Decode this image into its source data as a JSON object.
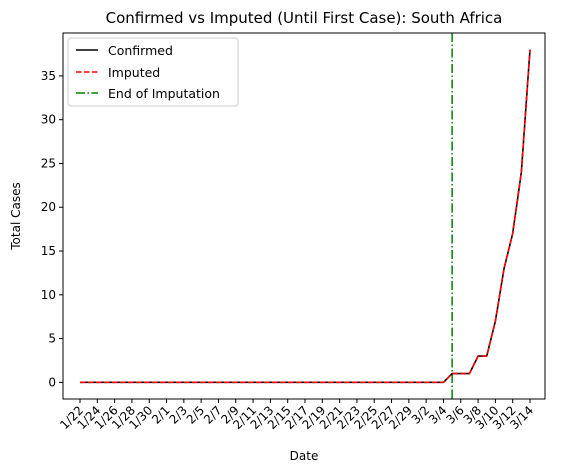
{
  "chart_data": {
    "type": "line",
    "title": "Confirmed vs Imputed (Until First Case): South Africa",
    "xlabel": "Date",
    "ylabel": "Total Cases",
    "x": [
      "1/22",
      "1/23",
      "1/24",
      "1/25",
      "1/26",
      "1/27",
      "1/28",
      "1/29",
      "1/30",
      "1/31",
      "2/1",
      "2/2",
      "2/3",
      "2/4",
      "2/5",
      "2/6",
      "2/7",
      "2/8",
      "2/9",
      "2/10",
      "2/11",
      "2/12",
      "2/13",
      "2/14",
      "2/15",
      "2/16",
      "2/17",
      "2/18",
      "2/19",
      "2/20",
      "2/21",
      "2/22",
      "2/23",
      "2/24",
      "2/25",
      "2/26",
      "2/27",
      "2/28",
      "2/29",
      "3/1",
      "3/2",
      "3/3",
      "3/4",
      "3/5",
      "3/6",
      "3/7",
      "3/8",
      "3/9",
      "3/10",
      "3/11",
      "3/12",
      "3/13",
      "3/14"
    ],
    "x_tick_labels": [
      "1/22",
      "1/24",
      "1/26",
      "1/28",
      "1/30",
      "2/1",
      "2/3",
      "2/5",
      "2/7",
      "2/9",
      "2/11",
      "2/13",
      "2/15",
      "2/17",
      "2/19",
      "2/21",
      "2/23",
      "2/25",
      "2/27",
      "2/29",
      "3/2",
      "3/4",
      "3/6",
      "3/8",
      "3/10",
      "3/12",
      "3/14"
    ],
    "y_ticks": [
      0,
      5,
      10,
      15,
      20,
      25,
      30,
      35
    ],
    "ylim": [
      -1.9,
      39.9
    ],
    "series": [
      {
        "name": "Confirmed",
        "color": "#000000",
        "style": "solid",
        "values": [
          0,
          0,
          0,
          0,
          0,
          0,
          0,
          0,
          0,
          0,
          0,
          0,
          0,
          0,
          0,
          0,
          0,
          0,
          0,
          0,
          0,
          0,
          0,
          0,
          0,
          0,
          0,
          0,
          0,
          0,
          0,
          0,
          0,
          0,
          0,
          0,
          0,
          0,
          0,
          0,
          0,
          0,
          0,
          1,
          1,
          1,
          3,
          3,
          7,
          13,
          17,
          24,
          38
        ]
      },
      {
        "name": "Imputed",
        "color": "#ff0000",
        "style": "dashed",
        "values": [
          0,
          0,
          0,
          0,
          0,
          0,
          0,
          0,
          0,
          0,
          0,
          0,
          0,
          0,
          0,
          0,
          0,
          0,
          0,
          0,
          0,
          0,
          0,
          0,
          0,
          0,
          0,
          0,
          0,
          0,
          0,
          0,
          0,
          0,
          0,
          0,
          0,
          0,
          0,
          0,
          0,
          0,
          0,
          1,
          1,
          1,
          3,
          3,
          7,
          13,
          17,
          24,
          38
        ]
      }
    ],
    "vline": {
      "name": "End of Imputation",
      "x": "3/5",
      "color": "#008000",
      "style": "dashdot"
    },
    "legend_position": "top-left",
    "grid": false
  }
}
